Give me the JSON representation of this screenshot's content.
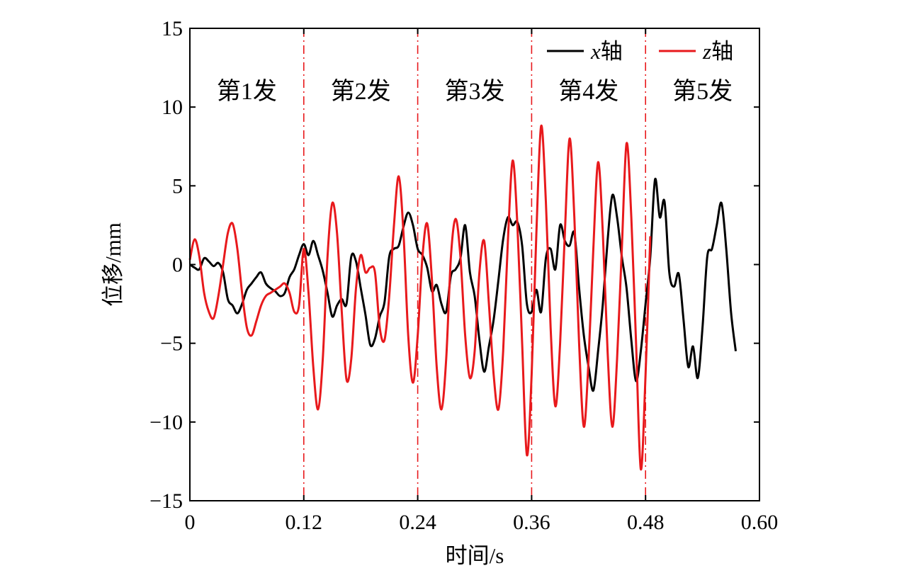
{
  "chart_data": {
    "type": "line",
    "xlabel": "时间/s",
    "ylabel": "位移/mm",
    "xlim": [
      0,
      0.6
    ],
    "ylim": [
      -15,
      15
    ],
    "x_ticks": [
      0,
      0.12,
      0.24,
      0.36,
      0.48,
      0.6
    ],
    "x_tick_labels": [
      "0",
      "0.12",
      "0.24",
      "0.36",
      "0.48",
      "0.60"
    ],
    "y_ticks": [
      -15,
      -10,
      -5,
      0,
      5,
      10,
      15
    ],
    "y_tick_labels": [
      "−15",
      "−10",
      "−5",
      "0",
      "5",
      "10",
      "15"
    ],
    "grid": false,
    "legend_position": "top-right",
    "vertical_markers": {
      "x": [
        0.12,
        0.24,
        0.36,
        0.48
      ],
      "color": "#e8191c",
      "style": "dash-dot"
    },
    "segment_labels": [
      {
        "text": "第1发",
        "x": 0.06,
        "y": 10.5
      },
      {
        "text": "第2发",
        "x": 0.18,
        "y": 10.5
      },
      {
        "text": "第3发",
        "x": 0.3,
        "y": 10.5
      },
      {
        "text": "第4发",
        "x": 0.42,
        "y": 10.5
      },
      {
        "text": "第5发",
        "x": 0.54,
        "y": 10.5
      }
    ],
    "series": [
      {
        "name_var": "x",
        "name_suffix": "轴",
        "color": "#000000",
        "points": [
          [
            0,
            0
          ],
          [
            0.005,
            -0.2
          ],
          [
            0.01,
            -0.3
          ],
          [
            0.015,
            0.4
          ],
          [
            0.02,
            0.2
          ],
          [
            0.025,
            -0.1
          ],
          [
            0.03,
            0.1
          ],
          [
            0.035,
            -0.5
          ],
          [
            0.04,
            -2.2
          ],
          [
            0.045,
            -2.6
          ],
          [
            0.05,
            -3.1
          ],
          [
            0.055,
            -2.5
          ],
          [
            0.06,
            -1.6
          ],
          [
            0.065,
            -1.2
          ],
          [
            0.07,
            -0.8
          ],
          [
            0.075,
            -0.5
          ],
          [
            0.08,
            -1.2
          ],
          [
            0.085,
            -1.5
          ],
          [
            0.09,
            -1.7
          ],
          [
            0.095,
            -2.0
          ],
          [
            0.1,
            -1.8
          ],
          [
            0.105,
            -0.8
          ],
          [
            0.11,
            -0.3
          ],
          [
            0.115,
            0.6
          ],
          [
            0.12,
            1.3
          ],
          [
            0.125,
            0.6
          ],
          [
            0.13,
            1.5
          ],
          [
            0.135,
            0.6
          ],
          [
            0.14,
            -0.4
          ],
          [
            0.145,
            -1.8
          ],
          [
            0.15,
            -3.3
          ],
          [
            0.155,
            -2.6
          ],
          [
            0.16,
            -2.2
          ],
          [
            0.165,
            -2.5
          ],
          [
            0.17,
            0.5
          ],
          [
            0.175,
            0.2
          ],
          [
            0.18,
            -1.5
          ],
          [
            0.185,
            -3.2
          ],
          [
            0.19,
            -5.1
          ],
          [
            0.195,
            -4.7
          ],
          [
            0.2,
            -3.3
          ],
          [
            0.205,
            -2.4
          ],
          [
            0.21,
            0.5
          ],
          [
            0.215,
            1.0
          ],
          [
            0.22,
            1.2
          ],
          [
            0.225,
            2.4
          ],
          [
            0.23,
            3.3
          ],
          [
            0.235,
            2.5
          ],
          [
            0.24,
            1.0
          ],
          [
            0.245,
            0.6
          ],
          [
            0.25,
            -0.2
          ],
          [
            0.255,
            -1.7
          ],
          [
            0.26,
            -1.3
          ],
          [
            0.265,
            -2.5
          ],
          [
            0.27,
            -3.0
          ],
          [
            0.275,
            -0.7
          ],
          [
            0.28,
            -0.3
          ],
          [
            0.285,
            0.4
          ],
          [
            0.29,
            2.5
          ],
          [
            0.295,
            -0.5
          ],
          [
            0.3,
            -2.0
          ],
          [
            0.305,
            -4.8
          ],
          [
            0.31,
            -6.8
          ],
          [
            0.315,
            -5.2
          ],
          [
            0.32,
            -3.5
          ],
          [
            0.325,
            -1.0
          ],
          [
            0.33,
            1.6
          ],
          [
            0.335,
            3.0
          ],
          [
            0.34,
            2.5
          ],
          [
            0.345,
            2.7
          ],
          [
            0.35,
            1.2
          ],
          [
            0.355,
            -2.5
          ],
          [
            0.36,
            -3.0
          ],
          [
            0.365,
            -1.6
          ],
          [
            0.37,
            -3.0
          ],
          [
            0.375,
            0.4
          ],
          [
            0.38,
            1.0
          ],
          [
            0.385,
            -0.3
          ],
          [
            0.39,
            2.5
          ],
          [
            0.395,
            1.5
          ],
          [
            0.4,
            1.2
          ],
          [
            0.405,
            2.0
          ],
          [
            0.41,
            -1.5
          ],
          [
            0.415,
            -4.5
          ],
          [
            0.42,
            -6.5
          ],
          [
            0.425,
            -8.0
          ],
          [
            0.43,
            -5.5
          ],
          [
            0.435,
            -2.5
          ],
          [
            0.44,
            1.5
          ],
          [
            0.445,
            4.4
          ],
          [
            0.45,
            3.0
          ],
          [
            0.455,
            0.5
          ],
          [
            0.46,
            -1.5
          ],
          [
            0.465,
            -4.8
          ],
          [
            0.47,
            -7.4
          ],
          [
            0.475,
            -5.5
          ],
          [
            0.48,
            -2.5
          ],
          [
            0.485,
            0.5
          ],
          [
            0.49,
            5.4
          ],
          [
            0.495,
            3.0
          ],
          [
            0.5,
            4.0
          ],
          [
            0.505,
            -0.5
          ],
          [
            0.51,
            -1.4
          ],
          [
            0.515,
            -0.6
          ],
          [
            0.52,
            -3.5
          ],
          [
            0.525,
            -6.5
          ],
          [
            0.53,
            -5.2
          ],
          [
            0.535,
            -7.2
          ],
          [
            0.54,
            -4.0
          ],
          [
            0.545,
            0.5
          ],
          [
            0.55,
            1.0
          ],
          [
            0.555,
            2.5
          ],
          [
            0.56,
            3.9
          ],
          [
            0.565,
            1.0
          ],
          [
            0.57,
            -3.0
          ],
          [
            0.575,
            -5.5
          ]
        ]
      },
      {
        "name_var": "z",
        "name_suffix": "轴",
        "color": "#e8191c",
        "points": [
          [
            0,
            0.3
          ],
          [
            0.005,
            1.6
          ],
          [
            0.01,
            0.5
          ],
          [
            0.015,
            -1.8
          ],
          [
            0.02,
            -3.0
          ],
          [
            0.025,
            -3.4
          ],
          [
            0.03,
            -2.0
          ],
          [
            0.035,
            0.0
          ],
          [
            0.04,
            2.0
          ],
          [
            0.045,
            2.6
          ],
          [
            0.05,
            1.0
          ],
          [
            0.055,
            -1.8
          ],
          [
            0.06,
            -4.0
          ],
          [
            0.065,
            -4.5
          ],
          [
            0.07,
            -3.6
          ],
          [
            0.075,
            -2.6
          ],
          [
            0.08,
            -2.0
          ],
          [
            0.085,
            -1.8
          ],
          [
            0.09,
            -1.6
          ],
          [
            0.095,
            -1.4
          ],
          [
            0.1,
            -1.2
          ],
          [
            0.105,
            -1.8
          ],
          [
            0.11,
            -3.0
          ],
          [
            0.115,
            -2.6
          ],
          [
            0.12,
            1.0
          ],
          [
            0.125,
            -1.8
          ],
          [
            0.13,
            -6.5
          ],
          [
            0.135,
            -9.2
          ],
          [
            0.14,
            -6.0
          ],
          [
            0.145,
            0.5
          ],
          [
            0.15,
            3.9
          ],
          [
            0.155,
            2.0
          ],
          [
            0.16,
            -3.0
          ],
          [
            0.165,
            -7.3
          ],
          [
            0.17,
            -6.0
          ],
          [
            0.175,
            -1.5
          ],
          [
            0.18,
            0.6
          ],
          [
            0.185,
            -0.5
          ],
          [
            0.19,
            -0.2
          ],
          [
            0.195,
            -0.5
          ],
          [
            0.2,
            -4.0
          ],
          [
            0.205,
            -4.8
          ],
          [
            0.21,
            -2.0
          ],
          [
            0.215,
            2.5
          ],
          [
            0.22,
            5.6
          ],
          [
            0.225,
            2.0
          ],
          [
            0.23,
            -4.5
          ],
          [
            0.235,
            -7.5
          ],
          [
            0.24,
            -4.5
          ],
          [
            0.245,
            0.5
          ],
          [
            0.25,
            2.6
          ],
          [
            0.255,
            -1.0
          ],
          [
            0.26,
            -6.5
          ],
          [
            0.265,
            -9.2
          ],
          [
            0.27,
            -6.0
          ],
          [
            0.275,
            0.5
          ],
          [
            0.28,
            2.9
          ],
          [
            0.285,
            0.5
          ],
          [
            0.29,
            -4.5
          ],
          [
            0.295,
            -7.2
          ],
          [
            0.3,
            -5.5
          ],
          [
            0.305,
            -0.5
          ],
          [
            0.31,
            1.5
          ],
          [
            0.315,
            -2.5
          ],
          [
            0.32,
            -7.0
          ],
          [
            0.325,
            -9.2
          ],
          [
            0.33,
            -5.5
          ],
          [
            0.335,
            1.5
          ],
          [
            0.34,
            6.6
          ],
          [
            0.345,
            2.5
          ],
          [
            0.35,
            -5.0
          ],
          [
            0.355,
            -12.1
          ],
          [
            0.36,
            -7.0
          ],
          [
            0.365,
            2.0
          ],
          [
            0.37,
            8.8
          ],
          [
            0.375,
            4.0
          ],
          [
            0.38,
            -4.0
          ],
          [
            0.385,
            -9.0
          ],
          [
            0.39,
            -5.0
          ],
          [
            0.395,
            2.0
          ],
          [
            0.4,
            8.0
          ],
          [
            0.405,
            3.0
          ],
          [
            0.41,
            -5.0
          ],
          [
            0.415,
            -10.3
          ],
          [
            0.42,
            -6.0
          ],
          [
            0.425,
            1.0
          ],
          [
            0.43,
            6.5
          ],
          [
            0.435,
            2.0
          ],
          [
            0.44,
            -5.5
          ],
          [
            0.445,
            -10.3
          ],
          [
            0.45,
            -6.0
          ],
          [
            0.455,
            1.0
          ],
          [
            0.46,
            7.7
          ],
          [
            0.465,
            3.0
          ],
          [
            0.47,
            -5.0
          ],
          [
            0.475,
            -13.0
          ],
          [
            0.48,
            -7.0
          ],
          [
            0.485,
            1.8
          ]
        ]
      }
    ]
  }
}
